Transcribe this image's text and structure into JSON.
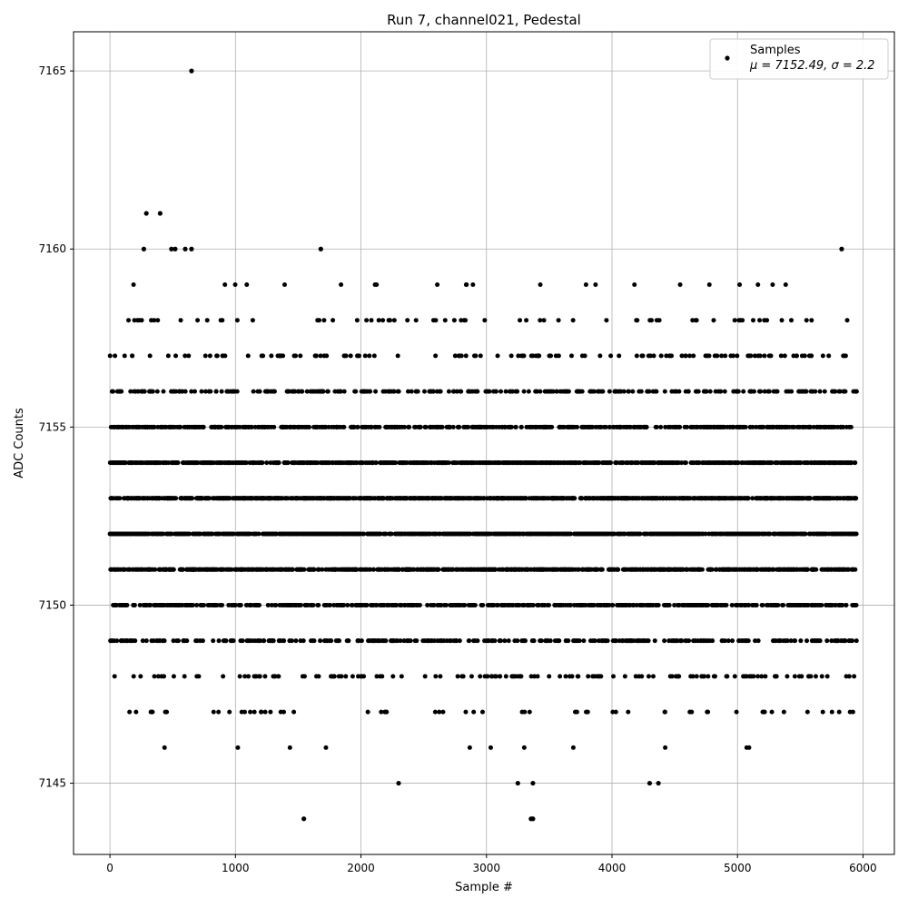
{
  "chart_data": {
    "type": "scatter",
    "title": "Run 7, channel021, Pedestal",
    "xlabel": "Sample #",
    "ylabel": "ADC Counts",
    "xlim": [
      -290,
      6250
    ],
    "ylim": [
      7143.0,
      7166.1
    ],
    "xticks": [
      0,
      1000,
      2000,
      3000,
      4000,
      5000,
      6000
    ],
    "yticks": [
      7145,
      7150,
      7155,
      7160,
      7165
    ],
    "grid": true,
    "legend": {
      "placement": "top-right",
      "entries": [
        {
          "label": "Samples",
          "stats": "μ = 7152.49, σ = 2.2",
          "marker": "dot",
          "color": "#000000"
        }
      ]
    },
    "marker_color": "#000000",
    "series": [
      {
        "name": "Samples",
        "n_samples": 5950,
        "x_step": 1,
        "mean": 7152.49,
        "sigma": 2.2,
        "levels": [
          7144,
          7145,
          7146,
          7147,
          7148,
          7149,
          7150,
          7151,
          7152,
          7153,
          7154,
          7155,
          7156,
          7157,
          7158,
          7159,
          7160,
          7161,
          7165
        ],
        "notable_points": [
          {
            "x": 650,
            "y": 7165
          },
          {
            "x": 290,
            "y": 7161
          },
          {
            "x": 400,
            "y": 7161
          },
          {
            "x": 270,
            "y": 7160
          },
          {
            "x": 490,
            "y": 7160
          },
          {
            "x": 520,
            "y": 7160
          },
          {
            "x": 600,
            "y": 7160
          },
          {
            "x": 650,
            "y": 7160
          },
          {
            "x": 1680,
            "y": 7160
          },
          {
            "x": 5830,
            "y": 7160
          },
          {
            "x": 1545,
            "y": 7144
          },
          {
            "x": 3355,
            "y": 7144
          },
          {
            "x": 3370,
            "y": 7144
          },
          {
            "x": 2300,
            "y": 7145
          },
          {
            "x": 3250,
            "y": 7145
          },
          {
            "x": 3370,
            "y": 7145
          },
          {
            "x": 4300,
            "y": 7145
          },
          {
            "x": 4370,
            "y": 7145
          }
        ]
      }
    ]
  }
}
